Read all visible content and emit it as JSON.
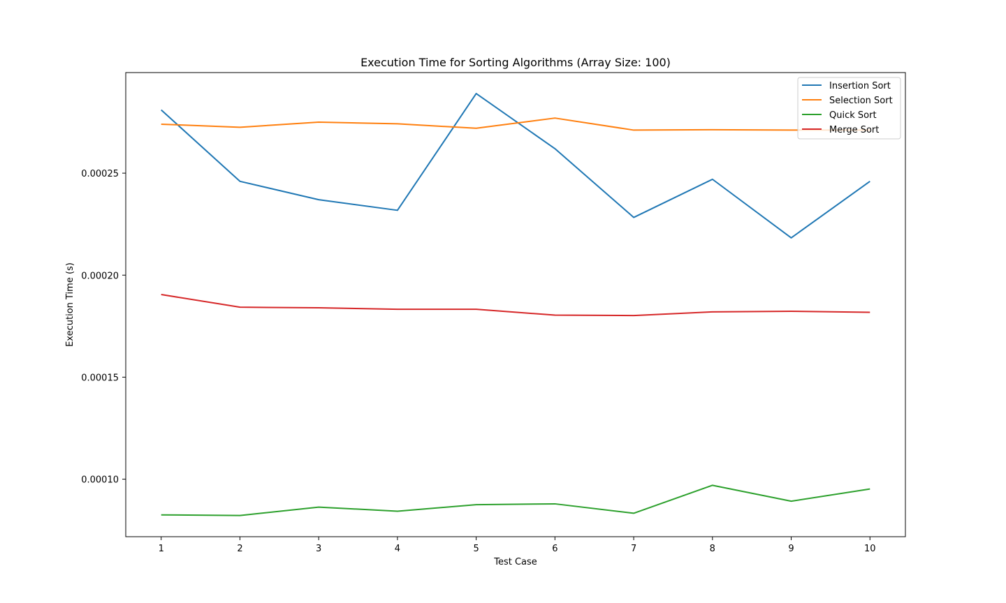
{
  "chart_data": {
    "type": "line",
    "title": "Execution Time for Sorting Algorithms (Array Size: 100)",
    "xlabel": "Test Case",
    "ylabel": "Execution Time (s)",
    "x": [
      1,
      2,
      3,
      4,
      5,
      6,
      7,
      8,
      9,
      10
    ],
    "xticks": [
      1,
      2,
      3,
      4,
      5,
      6,
      7,
      8,
      9,
      10
    ],
    "yticks": [
      0.0001,
      0.00015,
      0.0002,
      0.00025
    ],
    "ytick_labels": [
      "0.00010",
      "0.00015",
      "0.00020",
      "0.00025"
    ],
    "xlim": [
      0.55,
      10.45
    ],
    "ylim": [
      7.18e-05,
      0.0002993
    ],
    "grid": false,
    "legend_position": "top-right",
    "series": [
      {
        "name": "Insertion Sort",
        "color": "#1f77b4",
        "values": [
          0.000281,
          0.000246,
          0.000237,
          0.0002318,
          0.000289,
          0.000262,
          0.0002283,
          0.000247,
          0.0002183,
          0.000246
        ]
      },
      {
        "name": "Selection Sort",
        "color": "#ff7f0e",
        "values": [
          0.000274,
          0.0002725,
          0.000275,
          0.0002742,
          0.000272,
          0.000277,
          0.0002711,
          0.0002713,
          0.0002711,
          0.0002711
        ]
      },
      {
        "name": "Quick Sort",
        "color": "#2ca02c",
        "values": [
          8.25e-05,
          8.22e-05,
          8.63e-05,
          8.43e-05,
          8.75e-05,
          8.79e-05,
          8.33e-05,
          9.7e-05,
          8.92e-05,
          9.52e-05
        ]
      },
      {
        "name": "Merge Sort",
        "color": "#d62728",
        "values": [
          0.0001905,
          0.0001843,
          0.000184,
          0.0001833,
          0.0001833,
          0.0001804,
          0.0001802,
          0.000182,
          0.0001823,
          0.0001818
        ]
      }
    ]
  }
}
